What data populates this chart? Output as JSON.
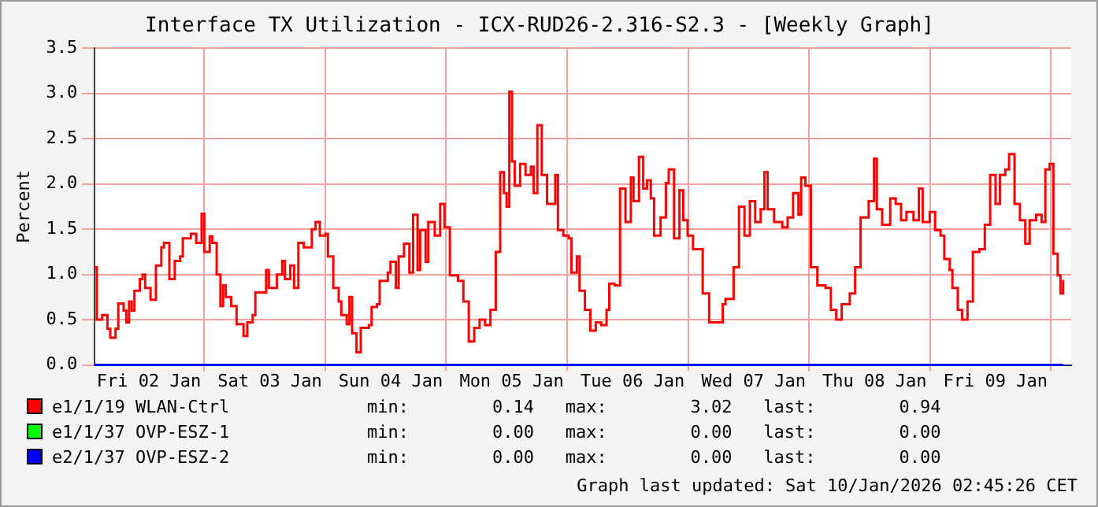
{
  "chart_data": {
    "type": "step",
    "title": "Interface TX Utilization - ICX-RUD26-2.316-S2.3 - [Weekly Graph]",
    "ylabel": "Percent",
    "xlim": [
      "2026-01-01T13:14",
      "2026-01-09T15:03"
    ],
    "xticks": [
      {
        "value": "2026-01-02",
        "label": "Fri 02 Jan"
      },
      {
        "value": "2026-01-03",
        "label": "Sat 03 Jan"
      },
      {
        "value": "2026-01-04",
        "label": "Sun 04 Jan"
      },
      {
        "value": "2026-01-05",
        "label": "Mon 05 Jan"
      },
      {
        "value": "2026-01-06",
        "label": "Tue 06 Jan"
      },
      {
        "value": "2026-01-07",
        "label": "Wed 07 Jan"
      },
      {
        "value": "2026-01-08",
        "label": "Thu 08 Jan"
      },
      {
        "value": "2026-01-09",
        "label": "Fri 09 Jan"
      },
      {
        "value": "2026-01-02T11:00",
        "label": null
      },
      {
        "value": "2026-01-03T11:00",
        "label": null
      },
      {
        "value": "2026-01-04T11:00",
        "label": null
      },
      {
        "value": "2026-01-05T11:00",
        "label": null
      },
      {
        "value": "2026-01-06T11:00",
        "label": null
      },
      {
        "value": "2026-01-07T11:00",
        "label": null
      },
      {
        "value": "2026-01-08T11:00",
        "label": null
      },
      {
        "value": "2026-01-09T11:00",
        "label": null
      }
    ],
    "ylim": [
      0,
      3.5
    ],
    "yticks": [
      {
        "value": 0,
        "label": "0.0"
      },
      0.5,
      {
        "value": 1,
        "label": "1.0"
      },
      1.5,
      {
        "value": 2,
        "label": "2.0"
      },
      2.5,
      {
        "value": 3,
        "label": "3.0"
      },
      3.5
    ],
    "grid": true,
    "legend": "bottom",
    "series": [
      {
        "name": "e1/1/19 WLAN-Ctrl",
        "color": "#ff0000",
        "x": [
          "2026-01-01T13:14",
          "2026-01-01T13:40",
          "2026-01-01T14:44",
          "2026-01-01T15:47",
          "2026-01-01T16:20",
          "2026-01-01T17:23",
          "2026-01-01T17:56",
          "2026-01-01T18:59",
          "2026-01-01T19:32",
          "2026-01-01T20:04",
          "2026-01-01T20:36",
          "2026-01-01T21:08",
          "2026-01-01T22:12",
          "2026-01-01T22:44",
          "2026-01-01T23:16",
          "2026-01-02T00:20",
          "2026-01-02T01:24",
          "2026-01-02T02:28",
          "2026-01-02T03:00",
          "2026-01-02T04:04",
          "2026-01-02T05:08",
          "2026-01-02T06:12",
          "2026-01-02T06:44",
          "2026-01-02T08:20",
          "2026-01-02T09:24",
          "2026-01-02T10:28",
          "2026-01-02T11:00",
          "2026-01-02T12:04",
          "2026-01-02T12:36",
          "2026-01-02T13:27",
          "2026-01-02T14:12",
          "2026-01-02T14:44",
          "2026-01-02T15:16",
          "2026-01-02T16:20",
          "2026-01-02T17:24",
          "2026-01-02T18:47",
          "2026-01-02T19:32",
          "2026-01-02T20:36",
          "2026-01-02T21:08",
          "2026-01-02T22:12",
          "2026-01-02T23:16",
          "2026-01-02T23:48",
          "2026-01-03T01:24",
          "2026-01-03T02:28",
          "2026-01-03T03:00",
          "2026-01-03T04:04",
          "2026-01-03T04:49",
          "2026-01-03T05:40",
          "2026-01-03T06:44",
          "2026-01-03T08:20",
          "2026-01-03T09:05",
          "2026-01-03T09:56",
          "2026-01-03T11:00",
          "2026-01-03T11:32",
          "2026-01-03T12:36",
          "2026-01-03T13:40",
          "2026-01-03T14:12",
          "2026-01-03T15:16",
          "2026-01-03T15:48",
          "2026-01-03T16:20",
          "2026-01-03T17:12",
          "2026-01-03T18:03",
          "2026-01-03T19:40",
          "2026-01-03T20:12",
          "2026-01-03T21:16",
          "2026-01-03T21:48",
          "2026-01-03T23:25",
          "2026-01-03T23:57",
          "2026-01-04T01:01",
          "2026-01-04T01:34",
          "2026-01-04T02:38",
          "2026-01-04T03:42",
          "2026-01-04T04:27",
          "2026-01-04T05:19",
          "2026-01-04T05:50",
          "2026-01-04T06:55",
          "2026-01-04T07:27",
          "2026-01-04T08:44",
          "2026-01-04T09:49",
          "2026-01-04T10:40",
          "2026-01-04T11:44",
          "2026-01-04T13:21",
          "2026-01-04T14:25",
          "2026-01-04T15:29",
          "2026-01-04T16:34",
          "2026-01-04T17:38",
          "2026-01-04T18:43",
          "2026-01-04T19:47",
          "2026-01-04T20:51",
          "2026-01-04T21:43",
          "2026-01-04T22:28",
          "2026-01-04T23:00",
          "2026-01-04T23:32",
          "2026-01-05T00:04",
          "2026-01-05T00:36",
          "2026-01-05T01:41",
          "2026-01-05T02:45",
          "2026-01-05T03:49",
          "2026-01-05T04:21",
          "2026-01-05T05:06",
          "2026-01-05T05:58",
          "2026-01-05T07:02",
          "2026-01-05T08:39",
          "2026-01-05T09:11",
          "2026-01-05T10:15",
          "2026-01-05T11:19",
          "2026-01-05T11:52",
          "2026-01-05T12:56",
          "2026-01-05T13:28",
          "2026-01-05T14:32",
          "2026-01-05T15:37",
          "2026-01-05T16:41",
          "2026-01-05T17:46",
          "2026-01-05T18:50",
          "2026-01-05T19:22",
          "2026-01-05T20:26",
          "2026-01-05T21:31",
          "2026-01-05T22:35",
          "2026-01-05T23:39",
          "2026-01-06T00:11",
          "2026-01-06T01:16",
          "2026-01-06T02:07",
          "2026-01-06T02:52",
          "2026-01-06T03:37",
          "2026-01-06T04:16",
          "2026-01-06T05:33",
          "2026-01-06T06:37",
          "2026-01-06T07:10",
          "2026-01-06T08:14",
          "2026-01-06T09:18",
          "2026-01-06T10:03",
          "2026-01-06T10:55",
          "2026-01-06T11:59",
          "2026-01-06T13:03",
          "2026-01-06T13:55",
          "2026-01-06T15:12",
          "2026-01-06T16:48",
          "2026-01-06T17:53",
          "2026-01-06T18:26",
          "2026-01-06T20:03",
          "2026-01-06T21:07",
          "2026-01-06T22:12",
          "2026-01-06T23:16",
          "2026-01-07T00:20",
          "2026-01-07T01:25",
          "2026-01-07T02:10",
          "2026-01-07T02:48",
          "2026-01-07T04:05",
          "2026-01-07T05:42",
          "2026-01-07T06:46",
          "2026-01-07T07:51",
          "2026-01-07T08:55",
          "2026-01-07T09:27",
          "2026-01-07T10:18",
          "2026-01-07T11:23",
          "2026-01-07T12:40",
          "2026-01-07T14:17",
          "2026-01-07T15:21",
          "2026-01-07T16:25",
          "2026-01-07T17:30",
          "2026-01-07T19:06",
          "2026-01-07T20:10",
          "2026-01-07T21:15",
          "2026-01-07T22:51",
          "2026-01-07T23:55",
          "2026-01-08T00:28",
          "2026-01-08T01:32",
          "2026-01-08T03:08",
          "2026-01-08T04:13",
          "2026-01-08T05:17",
          "2026-01-08T06:21",
          "2026-01-08T07:45",
          "2026-01-08T08:49",
          "2026-01-08T09:34",
          "2026-01-08T10:58",
          "2026-01-08T12:02",
          "2026-01-08T13:07",
          "2026-01-08T13:52",
          "2026-01-08T14:56",
          "2026-01-08T15:28",
          "2026-01-08T16:32",
          "2026-01-08T17:24",
          "2026-01-08T18:28",
          "2026-01-08T19:32",
          "2026-01-08T20:50",
          "2026-01-08T21:54",
          "2026-01-08T22:58",
          "2026-01-09T00:02",
          "2026-01-09T00:54",
          "2026-01-09T01:58",
          "2026-01-09T02:43",
          "2026-01-09T03:48",
          "2026-01-09T04:52",
          "2026-01-09T05:56",
          "2026-01-09T06:48",
          "2026-01-09T08:05",
          "2026-01-09T09:10",
          "2026-01-09T09:55",
          "2026-01-09T10:46",
          "2026-01-09T11:31",
          "2026-01-09T12:22",
          "2026-01-09T12:55",
          "2026-01-09T13:26"
        ],
        "values": [
          1.08,
          0.5,
          0.55,
          0.4,
          0.3,
          0.4,
          0.68,
          0.6,
          0.47,
          0.7,
          0.6,
          0.82,
          0.95,
          1.0,
          0.85,
          0.72,
          1.1,
          1.3,
          1.35,
          0.95,
          1.15,
          1.2,
          1.4,
          1.45,
          1.35,
          1.67,
          1.25,
          1.42,
          1.35,
          1.0,
          0.65,
          0.88,
          0.75,
          0.65,
          0.45,
          0.32,
          0.47,
          0.55,
          0.8,
          0.8,
          1.05,
          0.85,
          1.0,
          1.15,
          0.95,
          1.1,
          0.85,
          1.35,
          1.3,
          1.5,
          1.58,
          1.43,
          1.45,
          1.2,
          0.85,
          0.7,
          0.55,
          0.45,
          0.75,
          0.35,
          0.14,
          0.41,
          0.44,
          0.64,
          0.67,
          0.93,
          1.02,
          1.14,
          0.85,
          1.2,
          1.34,
          1.02,
          1.66,
          1.05,
          1.49,
          1.14,
          1.58,
          1.43,
          1.78,
          1.52,
          0.99,
          0.93,
          0.7,
          0.26,
          0.41,
          0.5,
          0.44,
          0.61,
          1.25,
          2.13,
          1.9,
          1.75,
          3.02,
          2.25,
          1.98,
          2.22,
          2.1,
          2.19,
          1.9,
          2.65,
          2.1,
          1.78,
          2.1,
          1.49,
          1.43,
          1.4,
          1.02,
          1.2,
          0.82,
          0.61,
          0.38,
          0.47,
          0.44,
          0.61,
          0.9,
          0.88,
          1.95,
          1.58,
          2.07,
          1.81,
          2.3,
          1.95,
          2.04,
          1.84,
          1.43,
          1.63,
          2.01,
          2.16,
          1.4,
          1.93,
          1.6,
          1.43,
          1.28,
          1.28,
          0.79,
          0.47,
          0.47,
          0.67,
          0.73,
          1.08,
          1.75,
          1.43,
          1.81,
          1.58,
          1.72,
          2.13,
          1.72,
          1.58,
          1.52,
          1.63,
          1.9,
          1.66,
          2.07,
          1.98,
          1.08,
          0.88,
          0.85,
          0.61,
          0.5,
          0.67,
          0.79,
          1.08,
          1.63,
          1.81,
          2.28,
          1.72,
          1.55,
          1.84,
          1.78,
          1.6,
          1.69,
          1.6,
          1.95,
          1.58,
          1.69,
          1.49,
          1.43,
          1.17,
          1.05,
          0.85,
          0.61,
          0.5,
          0.7,
          1.25,
          1.28,
          1.55,
          2.1,
          1.78,
          2.1,
          2.16,
          2.33,
          1.78,
          1.6,
          1.34,
          1.6,
          1.66,
          1.58,
          2.16,
          2.22,
          1.23,
          0.99,
          0.79,
          0.94
        ]
      },
      {
        "name": "e1/1/37 OVP-ESZ-1",
        "color": "#00ff00"
      },
      {
        "name": "e2/1/37 OVP-ESZ-2",
        "color": "#0000ff",
        "x": [
          "2026-01-01T13:14",
          "2026-01-09T13:26"
        ],
        "values": [
          0,
          0
        ]
      }
    ],
    "annotations": [
      "min:        0.14   max:        3.02   last:        0.94",
      "min:        0.00   max:        0.00   last:        0.00",
      "min:        0.00   max:        0.00   last:        0.00",
      "Graph last updated: Sat 10/Jan/2026 02:45:26 CET"
    ]
  }
}
